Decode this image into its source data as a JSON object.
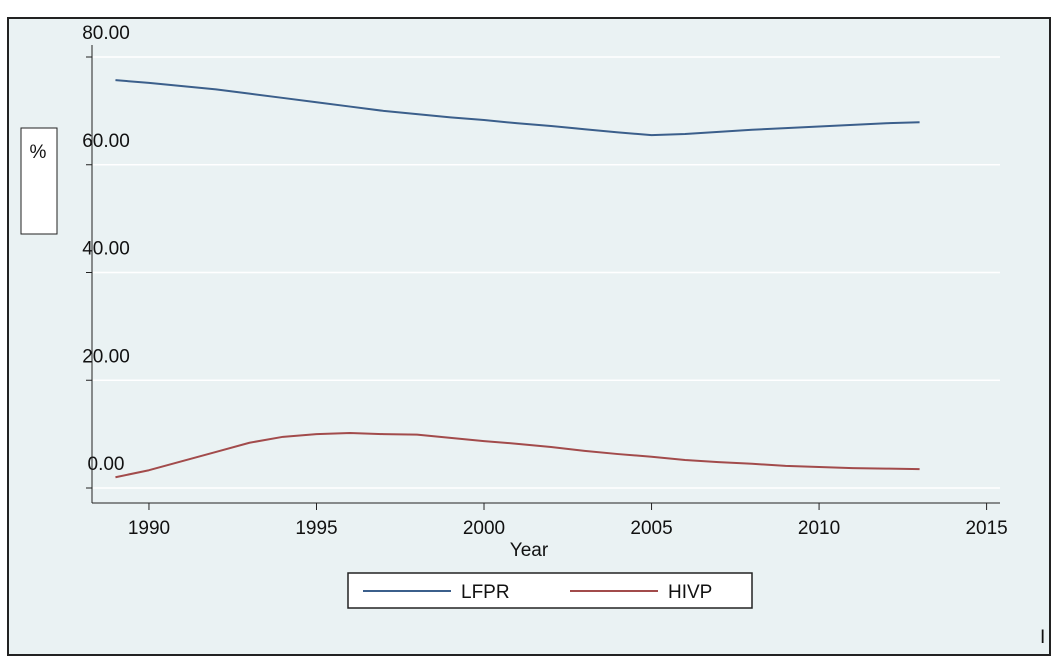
{
  "chart_data": {
    "type": "line",
    "x_label": "Year",
    "y_label": "%",
    "annotation": "I",
    "x": [
      1989,
      1990,
      1991,
      1992,
      1993,
      1994,
      1995,
      1996,
      1997,
      1998,
      1999,
      2000,
      2001,
      2002,
      2003,
      2004,
      2005,
      2006,
      2007,
      2008,
      2009,
      2010,
      2011,
      2012,
      2013
    ],
    "series": [
      {
        "name": "LFPR",
        "color": "#3b5f8b",
        "values": [
          75.7,
          75.2,
          74.6,
          74.0,
          73.2,
          72.4,
          71.6,
          70.8,
          70.0,
          69.4,
          68.8,
          68.3,
          67.7,
          67.2,
          66.6,
          66.0,
          65.5,
          65.7,
          66.1,
          66.5,
          66.8,
          67.1,
          67.4,
          67.7,
          67.9
        ]
      },
      {
        "name": "HIVP",
        "color": "#a24b4b",
        "values": [
          2.0,
          3.3,
          5.0,
          6.7,
          8.4,
          9.5,
          10.0,
          10.2,
          10.0,
          9.9,
          9.3,
          8.7,
          8.2,
          7.6,
          6.9,
          6.3,
          5.8,
          5.2,
          4.8,
          4.5,
          4.1,
          3.9,
          3.7,
          3.6,
          3.5
        ]
      }
    ],
    "xlim": [
      1988.3,
      2015.4
    ],
    "xticks": [
      1990,
      1995,
      2000,
      2005,
      2010,
      2015
    ],
    "ylim": [
      0,
      80
    ],
    "yticks": [
      {
        "value": 0,
        "label": "0.00"
      },
      {
        "value": 20,
        "label": "20.00"
      },
      {
        "value": 40,
        "label": "40.00"
      },
      {
        "value": 60,
        "label": "60.00"
      },
      {
        "value": 80,
        "label": "80.00"
      }
    ],
    "grid": true
  }
}
